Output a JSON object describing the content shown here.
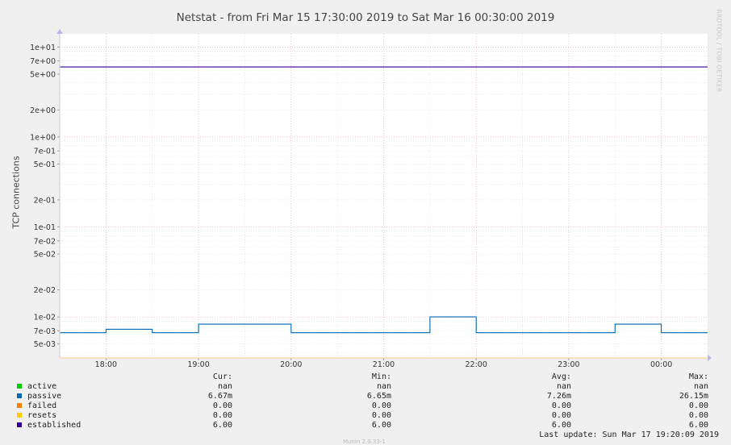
{
  "chart_data": {
    "type": "line",
    "title": "Netstat - from Fri Mar 15 17:30:00 2019 to Sat Mar 16 00:30:00 2019",
    "ylabel": "TCP connections",
    "xlabel": "",
    "scale": "log",
    "ylim": [
      0.0035,
      14
    ],
    "xlim": [
      "17:30",
      "00:30"
    ],
    "grid": true,
    "x_ticks": [
      "18:00",
      "19:00",
      "20:00",
      "21:00",
      "22:00",
      "23:00",
      "00:00"
    ],
    "y_ticks": [
      "1e+01",
      "7e+00",
      "5e+00",
      "2e+00",
      "1e+00",
      "7e-01",
      "5e-01",
      "2e-01",
      "1e-01",
      "7e-02",
      "5e-02",
      "2e-02",
      "1e-02",
      "7e-03",
      "5e-03"
    ],
    "series": [
      {
        "name": "active",
        "color": "#00cc00",
        "values": []
      },
      {
        "name": "passive",
        "color": "#0066b3",
        "points": [
          [
            "17:30",
            0.00667
          ],
          [
            "18:00",
            0.00667
          ],
          [
            "18:00",
            0.0073
          ],
          [
            "18:30",
            0.0073
          ],
          [
            "18:30",
            0.00667
          ],
          [
            "19:00",
            0.00667
          ],
          [
            "19:00",
            0.0083
          ],
          [
            "20:00",
            0.0083
          ],
          [
            "20:00",
            0.00667
          ],
          [
            "21:30",
            0.00667
          ],
          [
            "21:30",
            0.01
          ],
          [
            "22:00",
            0.01
          ],
          [
            "22:00",
            0.00667
          ],
          [
            "23:30",
            0.00667
          ],
          [
            "23:30",
            0.0083
          ],
          [
            "00:00",
            0.0083
          ],
          [
            "00:00",
            0.00667
          ],
          [
            "00:30",
            0.00667
          ]
        ]
      },
      {
        "name": "failed",
        "color": "#ff8000",
        "values": []
      },
      {
        "name": "resets",
        "color": "#ffcc00",
        "values": []
      },
      {
        "name": "established",
        "color": "#330099",
        "points": [
          [
            "17:30",
            6.0
          ],
          [
            "00:30",
            6.0
          ]
        ]
      }
    ]
  },
  "legend": {
    "headers": {
      "cur": "Cur:",
      "min": "Min:",
      "avg": "Avg:",
      "max": "Max:"
    },
    "rows": [
      {
        "name": "active",
        "color": "#00cc00",
        "cur": "nan",
        "min": "nan",
        "avg": "nan",
        "max": "nan"
      },
      {
        "name": "passive",
        "color": "#0066b3",
        "cur": "6.67m",
        "min": "6.65m",
        "avg": "7.26m",
        "max": "26.15m"
      },
      {
        "name": "failed",
        "color": "#ff8000",
        "cur": "0.00",
        "min": "0.00",
        "avg": "0.00",
        "max": "0.00"
      },
      {
        "name": "resets",
        "color": "#ffcc00",
        "cur": "0.00",
        "min": "0.00",
        "avg": "0.00",
        "max": "0.00"
      },
      {
        "name": "established",
        "color": "#330099",
        "cur": "6.00",
        "min": "6.00",
        "avg": "6.00",
        "max": "6.00"
      }
    ],
    "last_update": "Last update:  Sun Mar 17 19:20:09 2019"
  },
  "watermark": "RRDTOOL / TOBI OETIKER",
  "footer_fragment": "Munin 2.0.33-1"
}
